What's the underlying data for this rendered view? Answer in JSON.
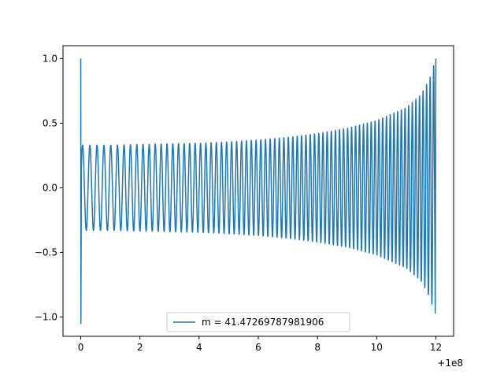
{
  "chart_data": {
    "type": "line",
    "title": "",
    "xlabel": "",
    "ylabel": "",
    "xlim": [
      -0.6,
      12.6
    ],
    "ylim": [
      -1.15,
      1.1
    ],
    "x_offset_label": "+1e8",
    "x_ticks": [
      0,
      2,
      4,
      6,
      8,
      10,
      12
    ],
    "x_tick_labels": [
      "0",
      "2",
      "4",
      "6",
      "8",
      "10",
      "12"
    ],
    "y_ticks": [
      -1.0,
      -0.5,
      0.0,
      0.5,
      1.0
    ],
    "y_tick_labels": [
      "−1.0",
      "−0.5",
      "0.0",
      "0.5",
      "1.0"
    ],
    "grid": false,
    "legend_position": "lower center",
    "series": [
      {
        "name": "m = 41.47269787981906",
        "color": "#1f77b4",
        "x_start": 0,
        "x_end": 12,
        "initial_spike": [
          1.0,
          -1.05
        ],
        "envelope": [
          [
            0.1,
            0.33
          ],
          [
            1,
            0.33
          ],
          [
            2,
            0.335
          ],
          [
            3,
            0.34
          ],
          [
            4,
            0.345
          ],
          [
            5,
            0.355
          ],
          [
            6,
            0.37
          ],
          [
            7,
            0.39
          ],
          [
            8,
            0.42
          ],
          [
            9,
            0.46
          ],
          [
            10,
            0.52
          ],
          [
            11,
            0.62
          ],
          [
            11.5,
            0.72
          ],
          [
            11.8,
            0.85
          ],
          [
            12.0,
            1.0
          ]
        ],
        "end_values": [
          1.0,
          -0.97
        ]
      }
    ]
  }
}
